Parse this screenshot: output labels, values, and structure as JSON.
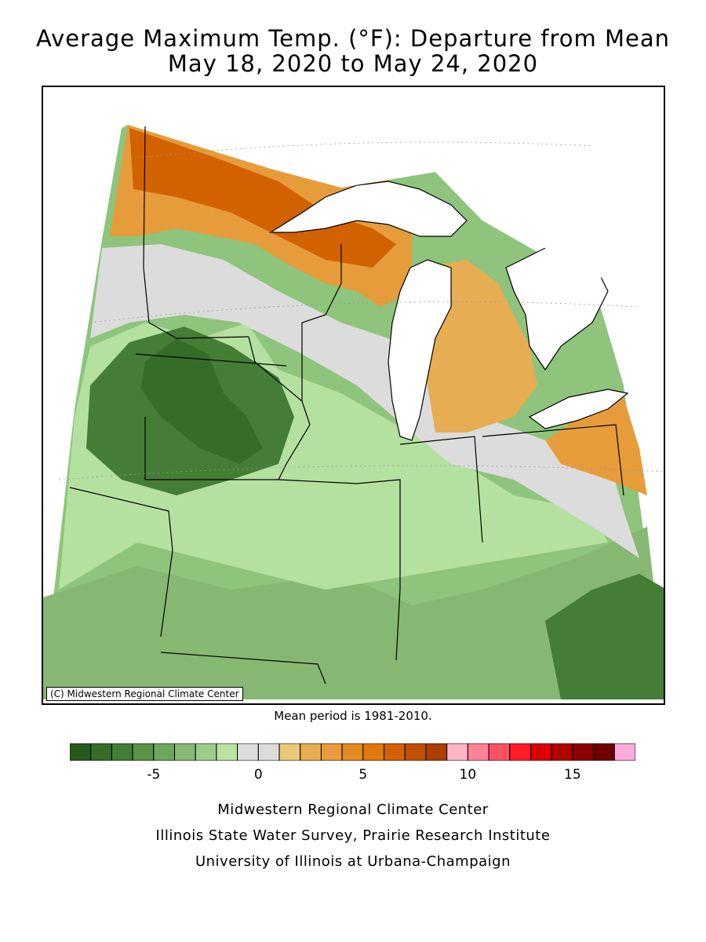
{
  "title": {
    "line1": "Average Maximum Temp. (°F): Departure from Mean",
    "line2": "May 18, 2020 to May 24, 2020"
  },
  "map": {
    "copyright": "(C) Midwestern Regional Climate Center",
    "region": "Upper Midwest",
    "land_color": "#8ec47b",
    "water_color": "#ffffff"
  },
  "mean_period": "Mean period is 1981-2010.",
  "legend": {
    "colors": [
      "#285a1e",
      "#356d28",
      "#447d35",
      "#5a9248",
      "#6fa55c",
      "#86b873",
      "#9dcc8a",
      "#b8e3a4",
      "#dcdcdc",
      "#dcdcdc",
      "#ebc878",
      "#e6ad52",
      "#e69c3a",
      "#e6891e",
      "#e0780a",
      "#d26200",
      "#c04f00",
      "#ac3e00",
      "#ffb4c8",
      "#ff8296",
      "#ff5064",
      "#ff1e28",
      "#dc0000",
      "#b40000",
      "#8c0000",
      "#6e0000",
      "#ffaadc"
    ],
    "tick_labels": [
      "-5",
      "0",
      "5",
      "10",
      "15"
    ],
    "tick_values": [
      -5,
      0,
      5,
      10,
      15
    ],
    "first_color_value": -9,
    "units_per_box": 1
  },
  "footer": {
    "line1": "Midwestern Regional Climate Center",
    "line2": "Illinois State Water Survey, Prairie Research Institute",
    "line3": "University of Illinois at Urbana-Champaign"
  }
}
